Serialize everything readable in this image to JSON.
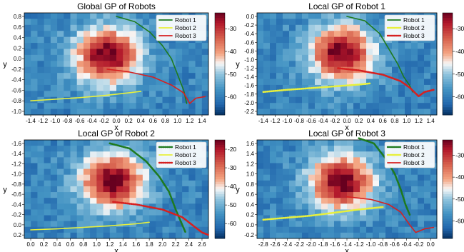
{
  "figure": {
    "colormap": "RdBu_r",
    "trajectory_colors": {
      "robot1": "#1e7a1e",
      "robot2": "#e8f03c",
      "robot3": "#d62020"
    }
  },
  "chart_data": [
    {
      "type": "heatmap",
      "title": "Global GP of Robots",
      "xlabel": "x",
      "ylabel": "y",
      "xticks": [
        "-1.4",
        "-1.2",
        "-1.0",
        "-0.8",
        "-0.6",
        "-0.4",
        "-0.2",
        "0.0",
        "0.2",
        "0.4",
        "0.6",
        "0.8",
        "1.0",
        "1.2",
        "1.4"
      ],
      "yticks": [
        "0.8",
        "0.6",
        "0.4",
        "0.2",
        "0.0",
        "-0.2",
        "-0.4",
        "-0.6",
        "-0.8",
        "-1.0"
      ],
      "colorbar_ticks": [
        "-30",
        "-40",
        "-50",
        "-60"
      ],
      "legend": [
        "Robot 1",
        "Robot 2",
        "Robot 3"
      ],
      "legend_placement": "top-right",
      "series": [
        {
          "name": "Robot 1",
          "style": "solid",
          "x": [
            0.0,
            0.3,
            0.55,
            0.75,
            0.9,
            1.0,
            1.1,
            1.15
          ],
          "y": [
            0.8,
            0.7,
            0.5,
            0.25,
            0.0,
            -0.3,
            -0.6,
            -0.85
          ]
        },
        {
          "name": "Robot 2",
          "style": "solid",
          "x": [
            -1.4,
            -1.0,
            -0.6,
            -0.2,
            0.2,
            0.4
          ],
          "y": [
            -0.8,
            -0.77,
            -0.74,
            -0.7,
            -0.65,
            -0.62
          ]
        },
        {
          "name": "Robot 3",
          "style": "solid",
          "x": [
            -0.15,
            0.2,
            0.6,
            0.9,
            1.1,
            1.2,
            1.3,
            1.45
          ],
          "y": [
            -0.2,
            -0.25,
            -0.35,
            -0.5,
            -0.65,
            -0.85,
            -0.75,
            -0.72
          ]
        }
      ]
    },
    {
      "type": "heatmap",
      "title": "Local GP of Robot 1",
      "xlabel": "x",
      "ylabel": "y",
      "xticks": [
        "-1.4",
        "-1.2",
        "-1.0",
        "-0.8",
        "-0.6",
        "-0.4",
        "-0.2",
        "0.0",
        "0.2",
        "0.4",
        "0.6",
        "0.8",
        "1.0",
        "1.2",
        "1.4"
      ],
      "yticks": [
        "0.0",
        "-0.2",
        "-0.4",
        "-0.6",
        "-0.8",
        "-1.0",
        "-1.2",
        "-1.4",
        "-1.6",
        "-1.8",
        "-2.0",
        "-2.2"
      ],
      "colorbar_ticks": [
        "-30",
        "-40",
        "-50",
        "-60"
      ],
      "legend": [
        "Robot 1",
        "Robot 2",
        "Robot 3"
      ],
      "legend_placement": "top-right",
      "series": [
        {
          "name": "Robot 1",
          "style": "solid",
          "x": [
            0.0,
            0.3,
            0.55,
            0.7,
            0.85,
            0.95,
            1.05,
            1.1
          ],
          "y": [
            0.0,
            -0.1,
            -0.4,
            -0.75,
            -1.1,
            -1.4,
            -1.6,
            -1.75
          ]
        },
        {
          "name": "Robot 2",
          "style": "dotted",
          "x": [
            -1.4,
            -1.0,
            -0.6,
            -0.2,
            0.2,
            0.4
          ],
          "y": [
            -1.75,
            -1.7,
            -1.66,
            -1.62,
            -1.58,
            -1.55
          ]
        },
        {
          "name": "Robot 3",
          "style": "dotted",
          "x": [
            -0.15,
            0.2,
            0.6,
            0.9,
            1.05,
            1.2,
            1.3,
            1.45
          ],
          "y": [
            -1.2,
            -1.25,
            -1.35,
            -1.5,
            -1.65,
            -1.85,
            -1.75,
            -1.7
          ]
        }
      ]
    },
    {
      "type": "heatmap",
      "title": "Local GP of Robot 2",
      "xlabel": "x",
      "ylabel": "y",
      "xticks": [
        "0.0",
        "0.2",
        "0.4",
        "0.6",
        "0.8",
        "1.0",
        "1.2",
        "1.4",
        "1.6",
        "1.8",
        "2.0",
        "2.2",
        "2.4",
        "2.6"
      ],
      "yticks": [
        "-1.6",
        "-1.4",
        "-1.2",
        "-1.0",
        "-0.8",
        "-0.6",
        "-0.4",
        "-0.2",
        "0.0",
        "0.2"
      ],
      "colorbar_ticks": [
        "-20",
        "-30",
        "-40",
        "-50",
        "-60"
      ],
      "legend": [
        "Robot 1",
        "Robot 2",
        "Robot 3"
      ],
      "legend_placement": "top-right",
      "series": [
        {
          "name": "Robot 1",
          "style": "dotted",
          "x": [
            1.2,
            1.5,
            1.75,
            1.95,
            2.1,
            2.2,
            2.3,
            2.35
          ],
          "y": [
            -1.6,
            -1.5,
            -1.25,
            -0.95,
            -0.65,
            -0.3,
            0.0,
            0.15
          ]
        },
        {
          "name": "Robot 2",
          "style": "solid",
          "x": [
            0.0,
            0.4,
            0.8,
            1.2,
            1.6,
            1.8
          ],
          "y": [
            0.1,
            0.08,
            0.05,
            0.02,
            -0.02,
            -0.05
          ]
        },
        {
          "name": "Robot 3",
          "style": "dotted",
          "x": [
            1.25,
            1.6,
            2.0,
            2.3,
            2.5,
            2.6,
            2.7
          ],
          "y": [
            -0.45,
            -0.4,
            -0.3,
            -0.15,
            0.05,
            0.15,
            0.2
          ]
        }
      ]
    },
    {
      "type": "heatmap",
      "title": "Local GP of Robot 3",
      "xlabel": "x",
      "ylabel": "y",
      "xticks": [
        "-2.8",
        "-2.6",
        "-2.4",
        "-2.2",
        "-2.0",
        "-1.8",
        "-1.6",
        "-1.4",
        "-1.2",
        "-1.0",
        "-0.8",
        "-0.6",
        "-0.4",
        "-0.2",
        "0.0"
      ],
      "yticks": [
        "1.6",
        "1.4",
        "1.2",
        "1.0",
        "0.8",
        "0.6",
        "0.4",
        "0.2",
        "0.0",
        "-0.2"
      ],
      "colorbar_ticks": [
        "-30",
        "-40",
        "-50",
        "-60"
      ],
      "legend": [
        "Robot 1",
        "Robot 2",
        "Robot 3"
      ],
      "legend_placement": "top-right",
      "series": [
        {
          "name": "Robot 1",
          "style": "dotted",
          "x": [
            -1.2,
            -0.95,
            -0.75,
            -0.6,
            -0.5,
            -0.42,
            -0.35
          ],
          "y": [
            1.7,
            1.6,
            1.3,
            1.0,
            0.7,
            0.4,
            0.2
          ]
        },
        {
          "name": "Robot 2",
          "style": "dotted",
          "x": [
            -2.8,
            -2.4,
            -2.0,
            -1.6,
            -1.2,
            -0.8
          ],
          "y": [
            0.1,
            0.14,
            0.18,
            0.24,
            0.3,
            0.35
          ]
        },
        {
          "name": "Robot 3",
          "style": "solid",
          "x": [
            -1.4,
            -1.0,
            -0.7,
            -0.5,
            -0.35,
            -0.25,
            -0.1,
            0.05
          ],
          "y": [
            0.55,
            0.5,
            0.4,
            0.25,
            0.0,
            -0.15,
            -0.08,
            -0.05
          ]
        }
      ]
    }
  ]
}
